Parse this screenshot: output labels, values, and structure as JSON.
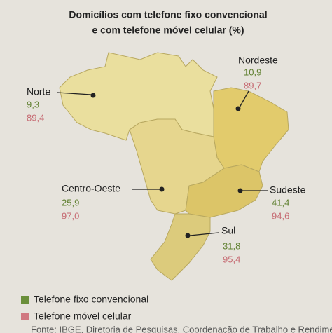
{
  "title": [
    "Domicílios com telefone fixo convencional",
    "e com telefone móvel celular (%)"
  ],
  "regions": [
    {
      "name": "Norte",
      "fixo": "9,3",
      "movel": "89,4"
    },
    {
      "name": "Nordeste",
      "fixo": "10,9",
      "movel": "89,7"
    },
    {
      "name": "Centro-Oeste",
      "fixo": "25,9",
      "movel": "97,0"
    },
    {
      "name": "Sudeste",
      "fixo": "41,4",
      "movel": "94,6"
    },
    {
      "name": "Sul",
      "fixo": "31,8",
      "movel": "95,4"
    }
  ],
  "legend": [
    "Telefone fixo convencional",
    "Telefone móvel celular"
  ],
  "source": "Fonte: IBGE, Diretoria de Pesquisas, Coordenação de Trabalho e Rendimento, Pesquisa"
}
